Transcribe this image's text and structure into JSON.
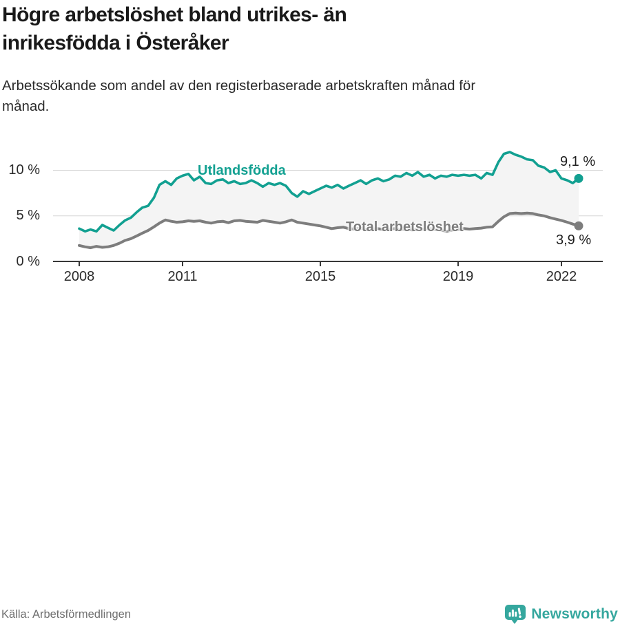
{
  "page": {
    "title_lines": [
      "Högre arbetslöshet bland utrikes- än",
      "inrikesfödda i Österåker"
    ],
    "subtitle_lines": [
      "Arbetssökande som andel av den registerbaserade arbetskraften månad för",
      "månad."
    ],
    "source": "Källa: Arbetsförmedlingen",
    "brand": {
      "name": "Newsworthy",
      "icon": "newsworthy-speech-bubble-bar-chart-icon",
      "color": "#35a79e"
    }
  },
  "chart_data": {
    "type": "line",
    "title": "Högre arbetslöshet bland utrikes- än inrikesfödda i Österåker",
    "subtitle": "Arbetssökande som andel av den registerbaserade arbetskraften månad för månad.",
    "source": "Källa: Arbetsförmedlingen",
    "legend_position": "inline-labels-on-lines",
    "grid": "horizontal-only",
    "x_axis": {
      "ticks": [
        2008,
        2011,
        2015,
        2019,
        2022
      ],
      "range": [
        2007.2,
        2023.2
      ]
    },
    "y_axis": {
      "ticks": [
        {
          "value": 0,
          "label": "0 %"
        },
        {
          "value": 5,
          "label": "5 %"
        },
        {
          "value": 10,
          "label": "10 %"
        }
      ],
      "gridlines": [
        5,
        10
      ],
      "range": [
        0,
        12.6
      ],
      "unit": "%"
    },
    "style": {
      "gridline_color": "#d5d5d5",
      "axis_color": "#383838",
      "area_color": "#f4f4f4",
      "tick_label_color": "#2b2b2b",
      "value_label_color": "#1d1d1d"
    },
    "x": [
      2008,
      2008.17,
      2008.33,
      2008.5,
      2008.67,
      2008.83,
      2009,
      2009.17,
      2009.33,
      2009.5,
      2009.67,
      2009.83,
      2010,
      2010.17,
      2010.33,
      2010.5,
      2010.67,
      2010.83,
      2011,
      2011.17,
      2011.33,
      2011.5,
      2011.67,
      2011.83,
      2012,
      2012.17,
      2012.33,
      2012.5,
      2012.67,
      2012.83,
      2013,
      2013.17,
      2013.33,
      2013.5,
      2013.67,
      2013.83,
      2014,
      2014.17,
      2014.33,
      2014.5,
      2014.67,
      2014.83,
      2015,
      2015.17,
      2015.33,
      2015.5,
      2015.67,
      2015.83,
      2016,
      2016.17,
      2016.33,
      2016.5,
      2016.67,
      2016.83,
      2017,
      2017.17,
      2017.33,
      2017.5,
      2017.67,
      2017.83,
      2018,
      2018.17,
      2018.33,
      2018.5,
      2018.67,
      2018.83,
      2019,
      2019.17,
      2019.33,
      2019.5,
      2019.67,
      2019.83,
      2020,
      2020.17,
      2020.33,
      2020.5,
      2020.67,
      2020.83,
      2021,
      2021.17,
      2021.33,
      2021.5,
      2021.67,
      2021.83,
      2022,
      2022.17,
      2022.33,
      2022.5
    ],
    "series": [
      {
        "name": "Utlandsfödda",
        "color": "#12a091",
        "end_value": 9.1,
        "end_label": "9,1 %",
        "values": [
          3.6,
          3.3,
          3.5,
          3.3,
          4.0,
          3.7,
          3.4,
          4.0,
          4.5,
          4.8,
          5.4,
          5.9,
          6.1,
          7.0,
          8.4,
          8.8,
          8.4,
          9.1,
          9.4,
          9.6,
          8.9,
          9.3,
          8.6,
          8.5,
          8.9,
          9.0,
          8.6,
          8.8,
          8.5,
          8.6,
          8.9,
          8.6,
          8.2,
          8.6,
          8.4,
          8.6,
          8.3,
          7.5,
          7.1,
          7.7,
          7.4,
          7.7,
          8.0,
          8.3,
          8.1,
          8.4,
          8.0,
          8.3,
          8.6,
          8.9,
          8.5,
          8.9,
          9.1,
          8.8,
          9.0,
          9.4,
          9.3,
          9.7,
          9.4,
          9.8,
          9.3,
          9.5,
          9.1,
          9.4,
          9.3,
          9.5,
          9.4,
          9.5,
          9.4,
          9.5,
          9.1,
          9.7,
          9.5,
          10.9,
          11.8,
          12.0,
          11.7,
          11.5,
          11.2,
          11.1,
          10.5,
          10.3,
          9.8,
          10.0,
          9.1,
          8.9,
          8.6,
          9.1
        ]
      },
      {
        "name": "Total arbetslöshet",
        "color": "#7d7d7d",
        "end_value": 3.9,
        "end_label": "3,9 %",
        "values": [
          1.75,
          1.6,
          1.5,
          1.65,
          1.55,
          1.6,
          1.75,
          2.0,
          2.3,
          2.5,
          2.8,
          3.1,
          3.4,
          3.8,
          4.2,
          4.55,
          4.4,
          4.3,
          4.35,
          4.45,
          4.4,
          4.45,
          4.3,
          4.2,
          4.35,
          4.4,
          4.25,
          4.45,
          4.5,
          4.4,
          4.35,
          4.3,
          4.5,
          4.4,
          4.3,
          4.2,
          4.35,
          4.55,
          4.3,
          4.2,
          4.1,
          4.0,
          3.9,
          3.75,
          3.6,
          3.7,
          3.75,
          3.6,
          3.55,
          3.65,
          3.5,
          3.55,
          3.6,
          3.5,
          3.55,
          3.6,
          3.5,
          3.55,
          3.45,
          3.5,
          3.55,
          3.6,
          3.5,
          3.45,
          3.3,
          3.45,
          3.5,
          3.6,
          3.55,
          3.6,
          3.65,
          3.75,
          3.8,
          4.4,
          4.9,
          5.25,
          5.3,
          5.25,
          5.3,
          5.25,
          5.1,
          5.0,
          4.8,
          4.65,
          4.5,
          4.3,
          4.1,
          3.9
        ]
      }
    ],
    "area_fill_between_series": true
  }
}
